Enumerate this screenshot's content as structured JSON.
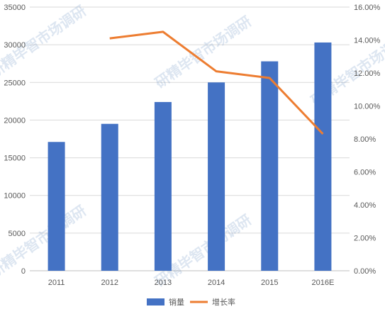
{
  "chart_data": {
    "type": "bar",
    "categories": [
      "2011",
      "2012",
      "2013",
      "2014",
      "2015",
      "2016E"
    ],
    "series": [
      {
        "name": "销量",
        "type": "bar",
        "axis": "left",
        "color": "#4472c4",
        "values": [
          17100,
          19500,
          22400,
          25000,
          27800,
          30300
        ]
      },
      {
        "name": "增长率",
        "type": "line",
        "axis": "right",
        "color": "#ed7d31",
        "values": [
          null,
          14.1,
          14.5,
          12.1,
          11.7,
          8.3
        ]
      }
    ],
    "y_left": {
      "min": 0,
      "max": 35000,
      "step": 5000,
      "ticks": [
        "0",
        "5000",
        "10000",
        "15000",
        "20000",
        "25000",
        "30000",
        "35000"
      ]
    },
    "y_right": {
      "min": 0,
      "max": 16,
      "step": 2,
      "ticks": [
        "0.00%",
        "2.00%",
        "4.00%",
        "6.00%",
        "8.00%",
        "10.00%",
        "12.00%",
        "14.00%",
        "16.00%"
      ]
    },
    "grid": true,
    "legend": "bottom",
    "watermark": "研精毕智市场调研"
  }
}
